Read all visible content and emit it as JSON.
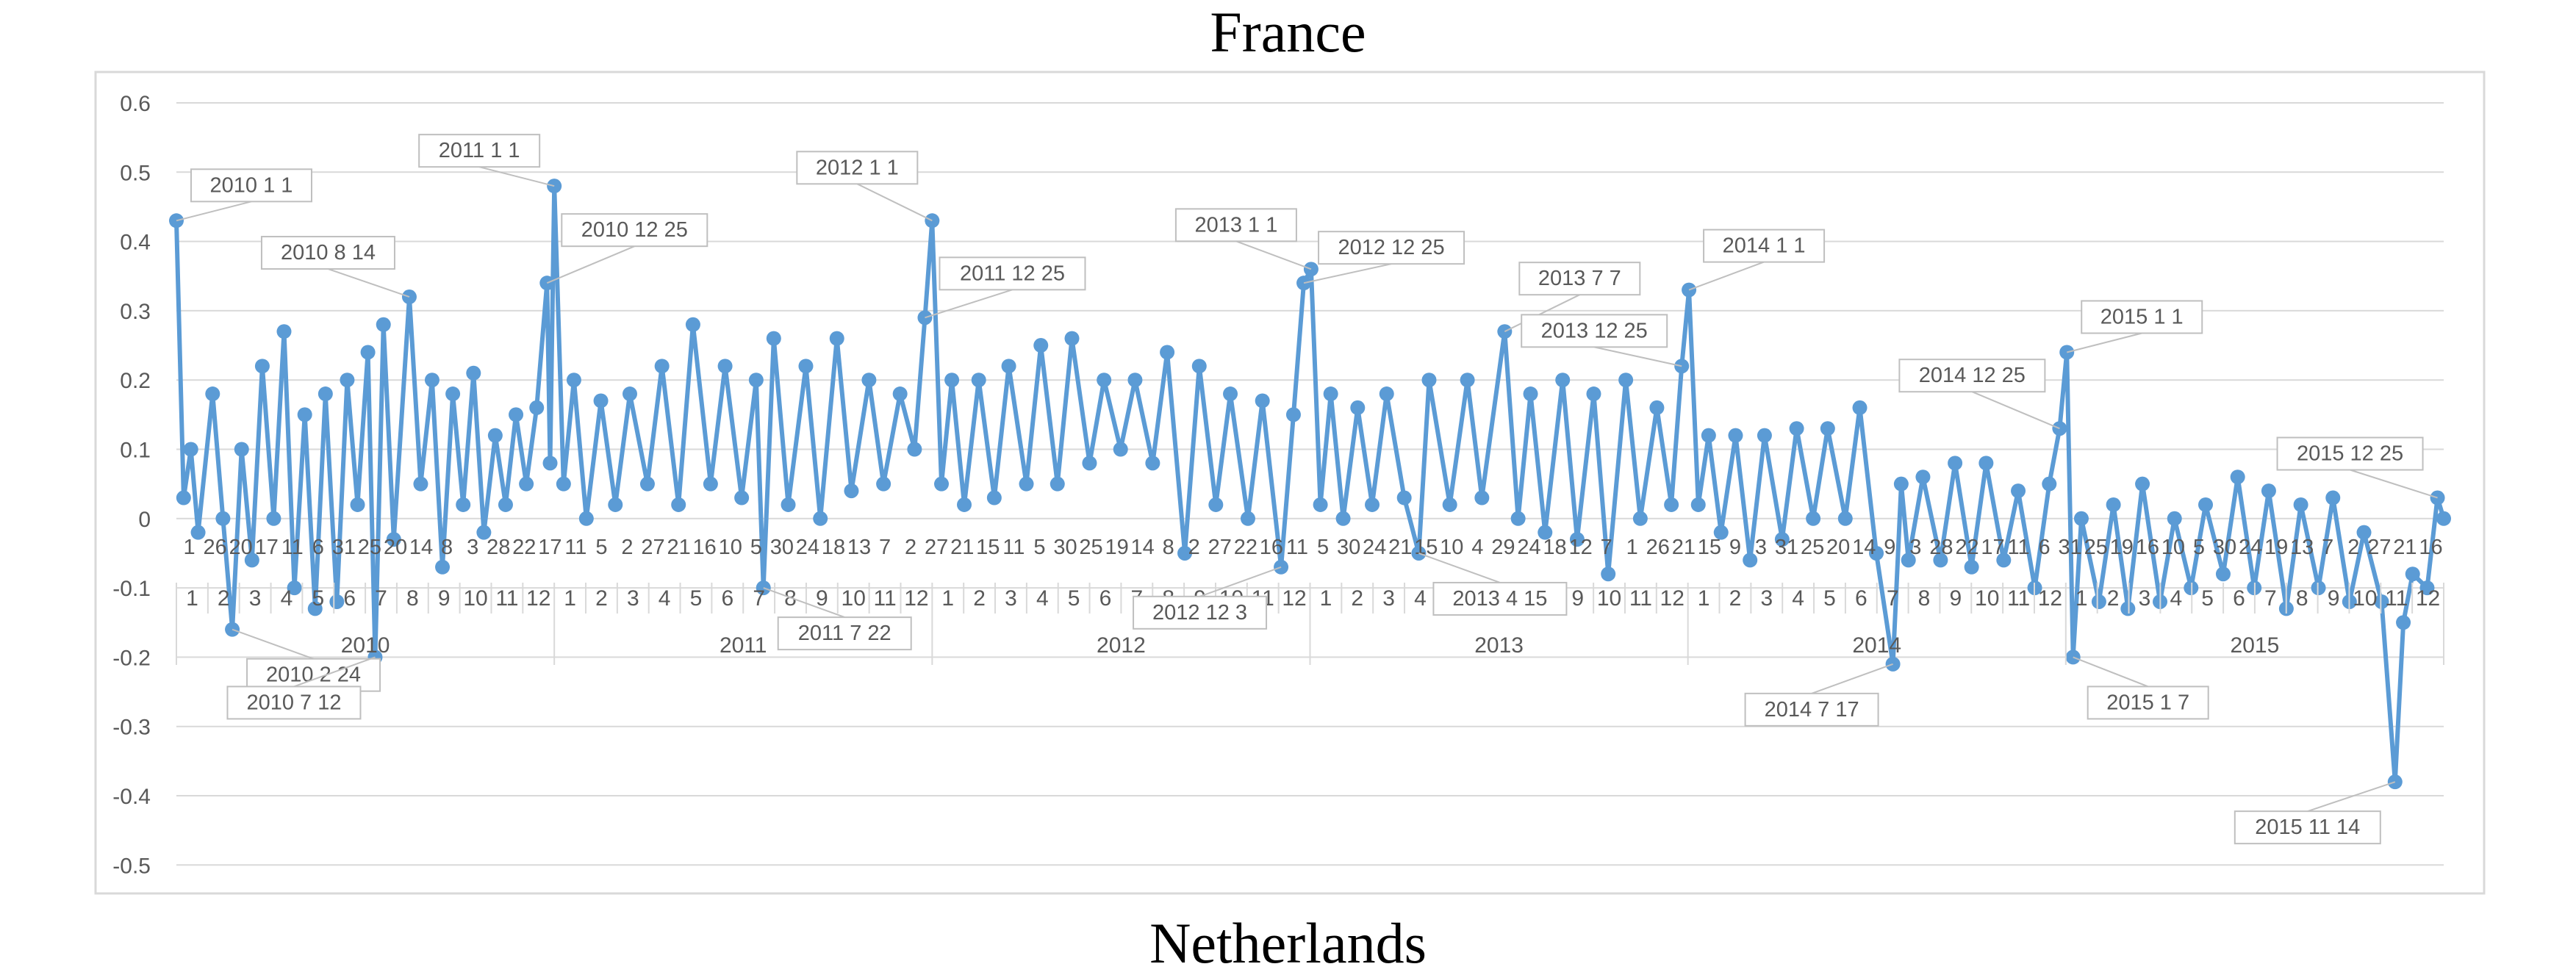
{
  "header": {
    "title": "France"
  },
  "footer": {
    "title": "Netherlands"
  },
  "chart_data": {
    "type": "line",
    "title": "France",
    "caption_below": "Netherlands",
    "xlabel": "",
    "ylabel": "",
    "ylim": [
      -0.5,
      0.6
    ],
    "y_ticks": [
      "0.6",
      "0.5",
      "0.4",
      "0.3",
      "0.2",
      "0.1",
      "0",
      "-0.1",
      "-0.2",
      "-0.3",
      "-0.4",
      "-0.5"
    ],
    "x_range": [
      "2010-01-01",
      "2015-12-31"
    ],
    "grid": "horizontal",
    "legend": "none",
    "colors": {
      "series": "#5b9bd5",
      "grid": "#d9d9d9",
      "axis_text": "#595959",
      "callout_border": "#bfbfbf"
    },
    "year_labels": [
      "2010",
      "2011",
      "2012",
      "2013",
      "2014",
      "2015"
    ],
    "month_labels": [
      "1",
      "2",
      "3",
      "4",
      "5",
      "6",
      "7",
      "8",
      "9",
      "10",
      "11",
      "12"
    ],
    "day_labels": [
      "1",
      "26",
      "20",
      "17",
      "11",
      "6",
      "31",
      "25",
      "20",
      "14",
      "8",
      "3",
      "28",
      "22",
      "17",
      "11",
      "5",
      "2",
      "27",
      "21",
      "16",
      "10",
      "5",
      "30",
      "24",
      "18",
      "13",
      "7",
      "2",
      "27",
      "21",
      "15",
      "11",
      "5",
      "30",
      "25",
      "19",
      "14",
      "8",
      "2",
      "27",
      "22",
      "16",
      "11",
      "5",
      "30",
      "24",
      "21",
      "15",
      "10",
      "4",
      "29",
      "24",
      "18",
      "12",
      "7",
      "1",
      "26",
      "21",
      "15",
      "9",
      "3",
      "31",
      "25",
      "20",
      "14",
      "9",
      "3",
      "28",
      "22",
      "17",
      "11",
      "6",
      "31",
      "25",
      "19",
      "16",
      "10",
      "5",
      "30",
      "24",
      "19",
      "13",
      "7",
      "2",
      "27",
      "21",
      "16"
    ],
    "series": [
      {
        "values": [
          {
            "date": "2010-01-01",
            "y": 0.43
          },
          {
            "date": "2010-01-08",
            "y": 0.03
          },
          {
            "date": "2010-01-15",
            "y": 0.1
          },
          {
            "date": "2010-01-22",
            "y": -0.02
          },
          {
            "date": "2010-02-05",
            "y": 0.18
          },
          {
            "date": "2010-02-15",
            "y": 0.0
          },
          {
            "date": "2010-02-24",
            "y": -0.16
          },
          {
            "date": "2010-03-05",
            "y": 0.1
          },
          {
            "date": "2010-03-15",
            "y": -0.06
          },
          {
            "date": "2010-03-25",
            "y": 0.22
          },
          {
            "date": "2010-04-05",
            "y": 0.0
          },
          {
            "date": "2010-04-15",
            "y": 0.27
          },
          {
            "date": "2010-04-25",
            "y": -0.1
          },
          {
            "date": "2010-05-05",
            "y": 0.15
          },
          {
            "date": "2010-05-15",
            "y": -0.13
          },
          {
            "date": "2010-05-25",
            "y": 0.18
          },
          {
            "date": "2010-06-05",
            "y": -0.12
          },
          {
            "date": "2010-06-15",
            "y": 0.2
          },
          {
            "date": "2010-06-25",
            "y": 0.02
          },
          {
            "date": "2010-07-05",
            "y": 0.24
          },
          {
            "date": "2010-07-12",
            "y": -0.2
          },
          {
            "date": "2010-07-20",
            "y": 0.28
          },
          {
            "date": "2010-07-30",
            "y": -0.03
          },
          {
            "date": "2010-08-14",
            "y": 0.32
          },
          {
            "date": "2010-08-25",
            "y": 0.05
          },
          {
            "date": "2010-09-05",
            "y": 0.2
          },
          {
            "date": "2010-09-15",
            "y": -0.07
          },
          {
            "date": "2010-09-25",
            "y": 0.18
          },
          {
            "date": "2010-10-05",
            "y": 0.02
          },
          {
            "date": "2010-10-15",
            "y": 0.21
          },
          {
            "date": "2010-10-25",
            "y": -0.02
          },
          {
            "date": "2010-11-05",
            "y": 0.12
          },
          {
            "date": "2010-11-15",
            "y": 0.02
          },
          {
            "date": "2010-11-25",
            "y": 0.15
          },
          {
            "date": "2010-12-05",
            "y": 0.05
          },
          {
            "date": "2010-12-15",
            "y": 0.16
          },
          {
            "date": "2010-12-25",
            "y": 0.34
          },
          {
            "date": "2010-12-28",
            "y": 0.08
          },
          {
            "date": "2011-01-01",
            "y": 0.48
          },
          {
            "date": "2011-01-10",
            "y": 0.05
          },
          {
            "date": "2011-01-20",
            "y": 0.2
          },
          {
            "date": "2011-02-01",
            "y": 0.0
          },
          {
            "date": "2011-02-15",
            "y": 0.17
          },
          {
            "date": "2011-03-01",
            "y": 0.02
          },
          {
            "date": "2011-03-15",
            "y": 0.18
          },
          {
            "date": "2011-04-01",
            "y": 0.05
          },
          {
            "date": "2011-04-15",
            "y": 0.22
          },
          {
            "date": "2011-05-01",
            "y": 0.02
          },
          {
            "date": "2011-05-15",
            "y": 0.28
          },
          {
            "date": "2011-06-01",
            "y": 0.05
          },
          {
            "date": "2011-06-15",
            "y": 0.22
          },
          {
            "date": "2011-07-01",
            "y": 0.03
          },
          {
            "date": "2011-07-15",
            "y": 0.2
          },
          {
            "date": "2011-07-22",
            "y": -0.1
          },
          {
            "date": "2011-08-01",
            "y": 0.26
          },
          {
            "date": "2011-08-15",
            "y": 0.02
          },
          {
            "date": "2011-09-01",
            "y": 0.22
          },
          {
            "date": "2011-09-15",
            "y": 0.0
          },
          {
            "date": "2011-10-01",
            "y": 0.26
          },
          {
            "date": "2011-10-15",
            "y": 0.04
          },
          {
            "date": "2011-11-01",
            "y": 0.2
          },
          {
            "date": "2011-11-15",
            "y": 0.05
          },
          {
            "date": "2011-12-01",
            "y": 0.18
          },
          {
            "date": "2011-12-15",
            "y": 0.1
          },
          {
            "date": "2011-12-25",
            "y": 0.29
          },
          {
            "date": "2012-01-01",
            "y": 0.43
          },
          {
            "date": "2012-01-10",
            "y": 0.05
          },
          {
            "date": "2012-01-20",
            "y": 0.2
          },
          {
            "date": "2012-02-01",
            "y": 0.02
          },
          {
            "date": "2012-02-15",
            "y": 0.2
          },
          {
            "date": "2012-03-01",
            "y": 0.03
          },
          {
            "date": "2012-03-15",
            "y": 0.22
          },
          {
            "date": "2012-04-01",
            "y": 0.05
          },
          {
            "date": "2012-04-15",
            "y": 0.25
          },
          {
            "date": "2012-05-01",
            "y": 0.05
          },
          {
            "date": "2012-05-15",
            "y": 0.26
          },
          {
            "date": "2012-06-01",
            "y": 0.08
          },
          {
            "date": "2012-06-15",
            "y": 0.2
          },
          {
            "date": "2012-07-01",
            "y": 0.1
          },
          {
            "date": "2012-07-15",
            "y": 0.2
          },
          {
            "date": "2012-08-01",
            "y": 0.08
          },
          {
            "date": "2012-08-15",
            "y": 0.24
          },
          {
            "date": "2012-09-01",
            "y": -0.05
          },
          {
            "date": "2012-09-15",
            "y": 0.22
          },
          {
            "date": "2012-10-01",
            "y": 0.02
          },
          {
            "date": "2012-10-15",
            "y": 0.18
          },
          {
            "date": "2012-11-01",
            "y": 0.0
          },
          {
            "date": "2012-11-15",
            "y": 0.17
          },
          {
            "date": "2012-12-03",
            "y": -0.07
          },
          {
            "date": "2012-12-15",
            "y": 0.15
          },
          {
            "date": "2012-12-25",
            "y": 0.34
          },
          {
            "date": "2013-01-01",
            "y": 0.36
          },
          {
            "date": "2013-01-10",
            "y": 0.02
          },
          {
            "date": "2013-01-20",
            "y": 0.18
          },
          {
            "date": "2013-02-01",
            "y": 0.0
          },
          {
            "date": "2013-02-15",
            "y": 0.16
          },
          {
            "date": "2013-03-01",
            "y": 0.02
          },
          {
            "date": "2013-03-15",
            "y": 0.18
          },
          {
            "date": "2013-04-01",
            "y": 0.03
          },
          {
            "date": "2013-04-15",
            "y": -0.05
          },
          {
            "date": "2013-04-25",
            "y": 0.2
          },
          {
            "date": "2013-05-15",
            "y": 0.02
          },
          {
            "date": "2013-06-01",
            "y": 0.2
          },
          {
            "date": "2013-06-15",
            "y": 0.03
          },
          {
            "date": "2013-07-07",
            "y": 0.27
          },
          {
            "date": "2013-07-20",
            "y": 0.0
          },
          {
            "date": "2013-08-01",
            "y": 0.18
          },
          {
            "date": "2013-08-15",
            "y": -0.02
          },
          {
            "date": "2013-09-01",
            "y": 0.2
          },
          {
            "date": "2013-09-15",
            "y": -0.03
          },
          {
            "date": "2013-10-01",
            "y": 0.18
          },
          {
            "date": "2013-10-15",
            "y": -0.08
          },
          {
            "date": "2013-11-01",
            "y": 0.2
          },
          {
            "date": "2013-11-15",
            "y": 0.0
          },
          {
            "date": "2013-12-01",
            "y": 0.16
          },
          {
            "date": "2013-12-15",
            "y": 0.02
          },
          {
            "date": "2013-12-25",
            "y": 0.22
          },
          {
            "date": "2014-01-01",
            "y": 0.33
          },
          {
            "date": "2014-01-10",
            "y": 0.02
          },
          {
            "date": "2014-01-20",
            "y": 0.12
          },
          {
            "date": "2014-02-01",
            "y": -0.02
          },
          {
            "date": "2014-02-15",
            "y": 0.12
          },
          {
            "date": "2014-03-01",
            "y": -0.06
          },
          {
            "date": "2014-03-15",
            "y": 0.12
          },
          {
            "date": "2014-04-01",
            "y": -0.03
          },
          {
            "date": "2014-04-15",
            "y": 0.13
          },
          {
            "date": "2014-05-01",
            "y": 0.0
          },
          {
            "date": "2014-05-15",
            "y": 0.13
          },
          {
            "date": "2014-06-01",
            "y": 0.0
          },
          {
            "date": "2014-06-15",
            "y": 0.16
          },
          {
            "date": "2014-07-01",
            "y": -0.05
          },
          {
            "date": "2014-07-17",
            "y": -0.21
          },
          {
            "date": "2014-07-25",
            "y": 0.05
          },
          {
            "date": "2014-08-01",
            "y": -0.06
          },
          {
            "date": "2014-08-15",
            "y": 0.06
          },
          {
            "date": "2014-09-01",
            "y": -0.06
          },
          {
            "date": "2014-09-15",
            "y": 0.08
          },
          {
            "date": "2014-10-01",
            "y": -0.07
          },
          {
            "date": "2014-10-15",
            "y": 0.08
          },
          {
            "date": "2014-11-01",
            "y": -0.06
          },
          {
            "date": "2014-11-15",
            "y": 0.04
          },
          {
            "date": "2014-12-01",
            "y": -0.1
          },
          {
            "date": "2014-12-15",
            "y": 0.05
          },
          {
            "date": "2014-12-25",
            "y": 0.13
          },
          {
            "date": "2015-01-01",
            "y": 0.24
          },
          {
            "date": "2015-01-07",
            "y": -0.2
          },
          {
            "date": "2015-01-15",
            "y": 0.0
          },
          {
            "date": "2015-02-01",
            "y": -0.12
          },
          {
            "date": "2015-02-15",
            "y": 0.02
          },
          {
            "date": "2015-03-01",
            "y": -0.13
          },
          {
            "date": "2015-03-15",
            "y": 0.05
          },
          {
            "date": "2015-04-01",
            "y": -0.12
          },
          {
            "date": "2015-04-15",
            "y": 0.0
          },
          {
            "date": "2015-05-01",
            "y": -0.1
          },
          {
            "date": "2015-05-15",
            "y": 0.02
          },
          {
            "date": "2015-06-01",
            "y": -0.08
          },
          {
            "date": "2015-06-15",
            "y": 0.06
          },
          {
            "date": "2015-07-01",
            "y": -0.1
          },
          {
            "date": "2015-07-15",
            "y": 0.04
          },
          {
            "date": "2015-08-01",
            "y": -0.13
          },
          {
            "date": "2015-08-15",
            "y": 0.02
          },
          {
            "date": "2015-09-01",
            "y": -0.1
          },
          {
            "date": "2015-09-15",
            "y": 0.03
          },
          {
            "date": "2015-10-01",
            "y": -0.12
          },
          {
            "date": "2015-10-15",
            "y": -0.02
          },
          {
            "date": "2015-11-01",
            "y": -0.12
          },
          {
            "date": "2015-11-14",
            "y": -0.38
          },
          {
            "date": "2015-11-22",
            "y": -0.15
          },
          {
            "date": "2015-12-01",
            "y": -0.08
          },
          {
            "date": "2015-12-15",
            "y": -0.1
          },
          {
            "date": "2015-12-25",
            "y": 0.03
          },
          {
            "date": "2015-12-31",
            "y": 0.0
          }
        ]
      }
    ],
    "annotations": [
      {
        "text": "2010 1 1",
        "date": "2010-01-01",
        "y": 0.43
      },
      {
        "text": "2010 8 14",
        "date": "2010-08-14",
        "y": 0.32
      },
      {
        "text": "2010 12 25",
        "date": "2010-12-25",
        "y": 0.34
      },
      {
        "text": "2011 1 1",
        "date": "2011-01-01",
        "y": 0.48
      },
      {
        "text": "2011 12 25",
        "date": "2011-12-25",
        "y": 0.29
      },
      {
        "text": "2012 1 1",
        "date": "2012-01-01",
        "y": 0.43
      },
      {
        "text": "2012 12 25",
        "date": "2012-12-25",
        "y": 0.34
      },
      {
        "text": "2013 1 1",
        "date": "2013-01-01",
        "y": 0.36
      },
      {
        "text": "2013 7 7",
        "date": "2013-07-07",
        "y": 0.27
      },
      {
        "text": "2013 12 25",
        "date": "2013-12-25",
        "y": 0.22
      },
      {
        "text": "2014 1 1",
        "date": "2014-01-01",
        "y": 0.33
      },
      {
        "text": "2014 12 25",
        "date": "2014-12-25",
        "y": 0.13
      },
      {
        "text": "2015 1 1",
        "date": "2015-01-01",
        "y": 0.24
      },
      {
        "text": "2015 12 25",
        "date": "2015-12-25",
        "y": 0.03
      },
      {
        "text": "2010 2 24",
        "date": "2010-02-24",
        "y": -0.16
      },
      {
        "text": "2010 7 12",
        "date": "2010-07-12",
        "y": -0.2
      },
      {
        "text": "2011 7 22",
        "date": "2011-07-22",
        "y": -0.1
      },
      {
        "text": "2012 12 3",
        "date": "2012-12-03",
        "y": -0.07
      },
      {
        "text": "2013 4 15",
        "date": "2013-04-15",
        "y": -0.05
      },
      {
        "text": "2014 7 17",
        "date": "2014-07-17",
        "y": -0.21
      },
      {
        "text": "2015 1 7",
        "date": "2015-01-07",
        "y": -0.2
      },
      {
        "text": "2015 11 14",
        "date": "2015-11-14",
        "y": -0.38
      }
    ]
  }
}
